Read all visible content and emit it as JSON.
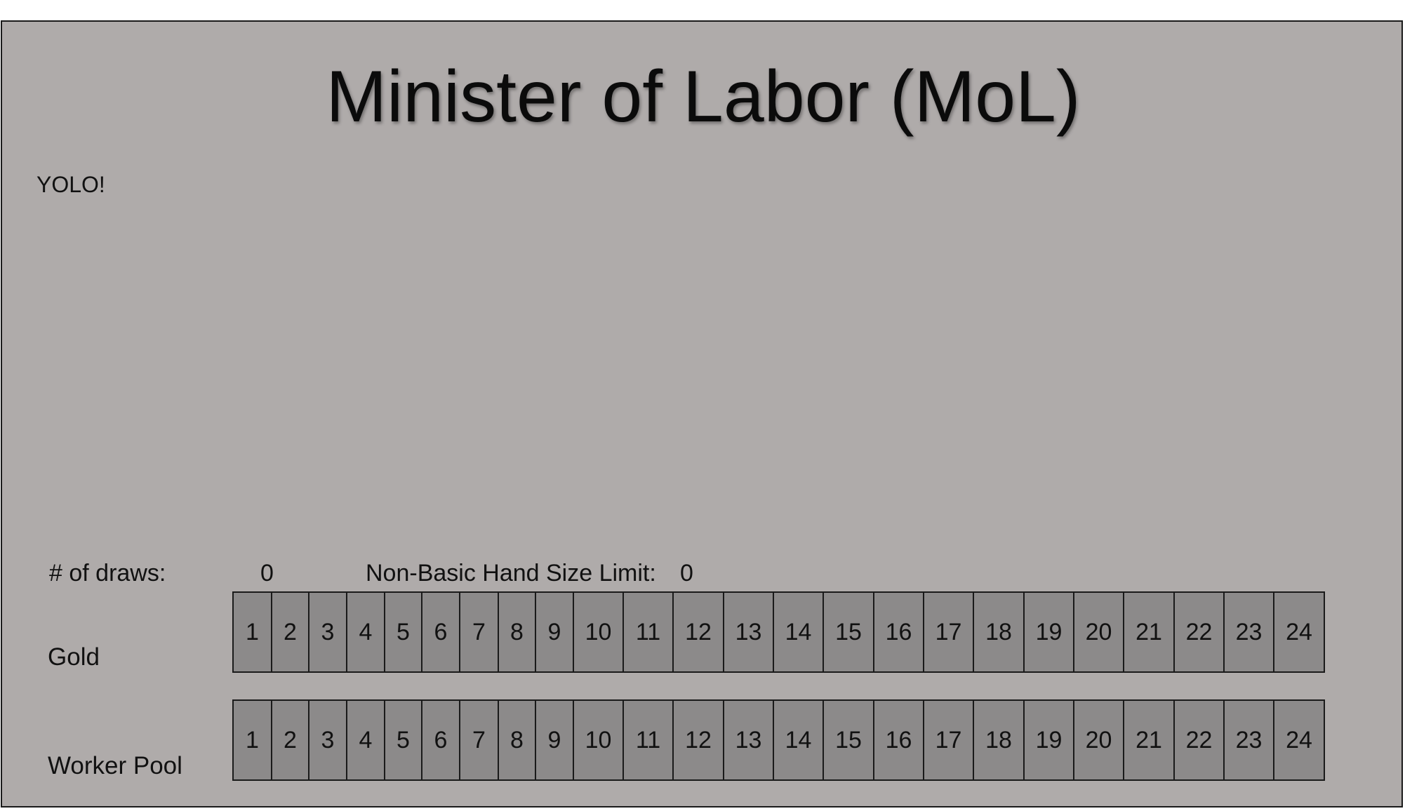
{
  "title": "Minister of Labor (MoL)",
  "note": "YOLO!",
  "stats": {
    "draws_label": "# of draws:",
    "draws_value": "0",
    "hand_limit_label": "Non-Basic Hand Size Limit:",
    "hand_limit_value": "0"
  },
  "tracks": [
    {
      "label": "Gold",
      "cells": [
        "1",
        "2",
        "3",
        "4",
        "5",
        "6",
        "7",
        "8",
        "9",
        "10",
        "11",
        "12",
        "13",
        "14",
        "15",
        "16",
        "17",
        "18",
        "19",
        "20",
        "21",
        "22",
        "23",
        "24"
      ]
    },
    {
      "label": "Worker Pool",
      "cells": [
        "1",
        "2",
        "3",
        "4",
        "5",
        "6",
        "7",
        "8",
        "9",
        "10",
        "11",
        "12",
        "13",
        "14",
        "15",
        "16",
        "17",
        "18",
        "19",
        "20",
        "21",
        "22",
        "23",
        "24"
      ]
    }
  ],
  "colors": {
    "board_background": "#afabaa",
    "cell_fill": "#8c8a8a",
    "border": "#1a1a1a"
  }
}
